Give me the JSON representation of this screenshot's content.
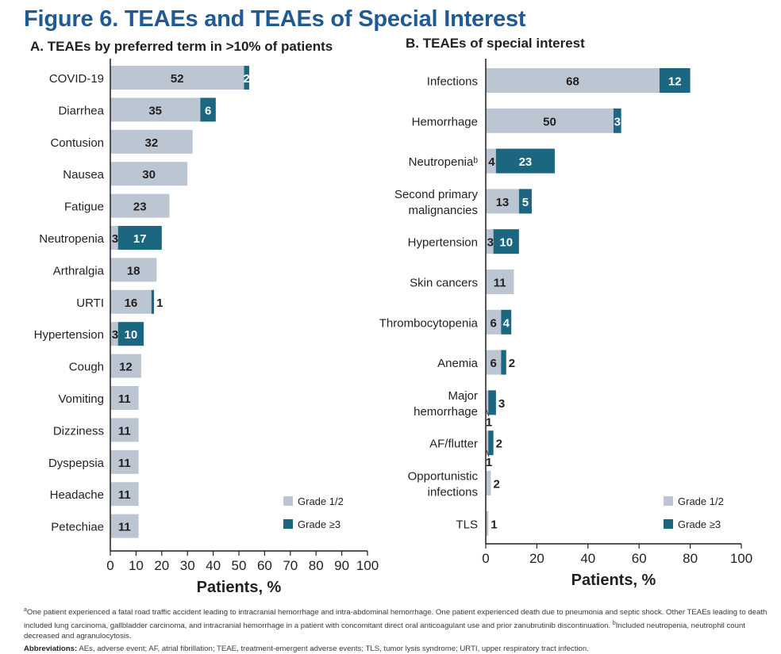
{
  "figure": {
    "title": "Figure 6. TEAEs and TEAEs of Special Interest"
  },
  "colors": {
    "grade12": "#bcc6d2",
    "grade3": "#1b6780",
    "title": "#1f5a96",
    "text": "#231f20"
  },
  "legend": {
    "grade12": "Grade 1/2",
    "grade3": "Grade ≥3"
  },
  "chart_data": [
    {
      "type": "bar",
      "orientation": "horizontal",
      "stacked": true,
      "title": "A. TEAEs by preferred term in >10% of patients",
      "xlabel": "Patients, %",
      "ylabel": "",
      "xlim": [
        0,
        100
      ],
      "xticks": [
        0,
        10,
        20,
        30,
        40,
        50,
        60,
        70,
        80,
        90,
        100
      ],
      "legend_position": "bottom-right",
      "grid": false,
      "categories": [
        "COVID-19",
        "Diarrhea",
        "Contusion",
        "Nausea",
        "Fatigue",
        "Neutropenia",
        "Arthralgia",
        "URTI",
        "Hypertension",
        "Cough",
        "Vomiting",
        "Dizziness",
        "Dyspepsia",
        "Headache",
        "Petechiae"
      ],
      "series": [
        {
          "name": "Grade 1/2",
          "values": [
            52,
            35,
            32,
            30,
            23,
            3,
            18,
            16,
            3,
            12,
            11,
            11,
            11,
            11,
            11
          ]
        },
        {
          "name": "Grade ≥3",
          "values": [
            2,
            6,
            0,
            0,
            0,
            17,
            0,
            1,
            10,
            0,
            0,
            0,
            0,
            0,
            0
          ]
        }
      ]
    },
    {
      "type": "bar",
      "orientation": "horizontal",
      "stacked": true,
      "title": "B. TEAEs of special interest",
      "xlabel": "Patients, %",
      "ylabel": "",
      "xlim": [
        0,
        100
      ],
      "xticks": [
        0,
        20,
        40,
        60,
        80,
        100
      ],
      "legend_position": "bottom-right",
      "grid": false,
      "categories": [
        "Infections",
        "Hemorrhage",
        "Neutropeniaᵇ",
        "Second primary|malignancies",
        "Hypertension",
        "Skin cancers",
        "Thrombocytopenia",
        "Anemia",
        "Major|hemorrhage",
        "AF/flutter",
        "Opportunistic|infections",
        "TLS"
      ],
      "series": [
        {
          "name": "Grade 1/2",
          "values": [
            68,
            50,
            4,
            13,
            3,
            11,
            6,
            6,
            1,
            1,
            2,
            1
          ]
        },
        {
          "name": "Grade ≥3",
          "values": [
            12,
            3,
            23,
            5,
            10,
            0,
            4,
            2,
            3,
            2,
            0,
            0
          ]
        }
      ]
    }
  ],
  "footnotes": {
    "a_marker": "a",
    "a_text": "One patient experienced a fatal road traffic accident leading to intracranial hemorrhage and intra-abdominal hemorrhage. One patient experienced death due to pneumonia and septic shock. Other TEAEs leading to death included lung carcinoma, gallbladder carcinoma, and intracranial hemorrhage in a patient with concomitant direct oral anticoagulant use and prior zanubrutinib discontinuation.",
    "b_marker": "b",
    "b_text": "Included neutropenia, neutrophil count decreased and agranulocytosis.",
    "abbr_label": "Abbreviations:",
    "abbr_text": "AEs, adverse event; AF, atrial fibrillation; TEAE, treatment-emergent adverse events; TLS, tumor lysis syndrome; URTI, upper respiratory tract infection."
  }
}
